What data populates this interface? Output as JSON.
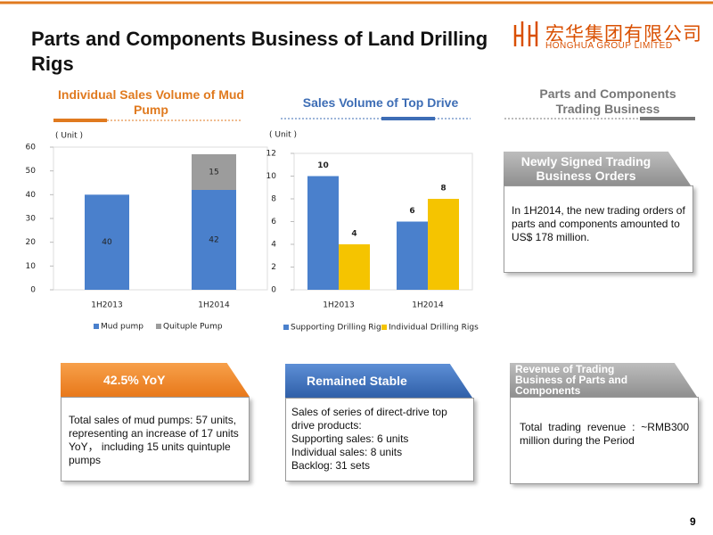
{
  "header": {
    "title": "Parts and Components Business of Land Drilling Rigs",
    "logo_cn": "宏华集团有限公司",
    "logo_en": "HONGHUA GROUP LIMITED"
  },
  "sections": [
    {
      "heading": "Individual Sales Volume of Mud Pump"
    },
    {
      "heading": "Sales Volume of Top Drive"
    },
    {
      "heading": "Parts and Components Trading Business"
    }
  ],
  "chart_data": [
    {
      "type": "bar",
      "stacked": true,
      "unit_label": "( Unit )",
      "categories": [
        "1H2013",
        "1H2014"
      ],
      "series": [
        {
          "name": "Mud pump",
          "color": "#4a80cc",
          "values": [
            40,
            42
          ]
        },
        {
          "name": "Quituple Pump",
          "color": "#9c9c9c",
          "values": [
            null,
            15
          ]
        }
      ],
      "ylim": [
        0,
        60
      ],
      "yticks": [
        0,
        10,
        20,
        30,
        40,
        50,
        60
      ]
    },
    {
      "type": "bar",
      "stacked": false,
      "unit_label": "( Unit )",
      "categories": [
        "1H2013",
        "1H2014"
      ],
      "series": [
        {
          "name": "Supporting Drilling Rigs",
          "color": "#4a80cc",
          "values": [
            10,
            6
          ]
        },
        {
          "name": "Individual Drilling Rigs",
          "color": "#f5c400",
          "values": [
            4,
            8
          ]
        }
      ],
      "ylim": [
        0,
        12
      ],
      "yticks": [
        0,
        2,
        4,
        6,
        8,
        10,
        12
      ]
    }
  ],
  "boxes": [
    {
      "heading": "Newly Signed Trading Business Orders",
      "lines": [
        "In 1H2014, the new trading orders of parts and components amounted to US$ 178 million."
      ]
    },
    {
      "heading": "42.5% YoY",
      "lines": [
        "Total sales of mud pumps: 57 units, representing an increase of 17 units YoY， including 15 units quintuple pumps"
      ]
    },
    {
      "heading": "Remained Stable",
      "lines": [
        "Sales of series of direct-drive top drive products:",
        "Supporting sales: 6 units",
        "Individual sales: 8 units",
        "Backlog: 31 sets"
      ]
    },
    {
      "heading": "Revenue of Trading Business of Parts and Components",
      "lines": [
        "Total trading revenue : ~RMB300 million during the Period"
      ]
    }
  ],
  "page_number": "9"
}
